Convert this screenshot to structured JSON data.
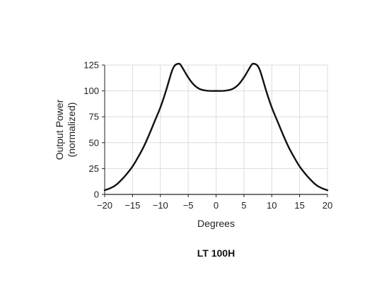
{
  "chart_data": {
    "type": "line",
    "title": "LT 100H",
    "xlabel": "Degrees",
    "ylabel": [
      "Output Power",
      "(normalized)"
    ],
    "xlim": [
      -20,
      20
    ],
    "ylim": [
      0,
      125
    ],
    "xticks": [
      -20,
      -15,
      -10,
      -5,
      0,
      5,
      10,
      15,
      20
    ],
    "xtick_labels": [
      "−20",
      "−15",
      "−10",
      "−5",
      "0",
      "5",
      "10",
      "15",
      "20"
    ],
    "yticks": [
      0,
      25,
      50,
      75,
      100,
      125
    ],
    "ytick_labels": [
      "0",
      "25",
      "50",
      "75",
      "100",
      "125"
    ],
    "grid": true,
    "legend": "none",
    "series": [
      {
        "x": [
          -20,
          -19,
          -18,
          -17,
          -16,
          -15,
          -14,
          -13,
          -12,
          -11,
          -10,
          -9,
          -8,
          -7.5,
          -7,
          -6.5,
          -6,
          -5,
          -4,
          -3,
          -2,
          -1,
          0,
          1,
          2,
          3,
          4,
          5,
          6,
          6.5,
          7,
          7.5,
          8,
          9,
          10,
          11,
          12,
          13,
          14,
          15,
          16,
          17,
          18,
          19,
          20
        ],
        "y": [
          4,
          6,
          9,
          14,
          20,
          27,
          36,
          46,
          58,
          71,
          84,
          100,
          118,
          124,
          126,
          126,
          122,
          113,
          106,
          102,
          100.5,
          100,
          100,
          100,
          100.5,
          102,
          106,
          113,
          122,
          126,
          126,
          124,
          118,
          100,
          84,
          71,
          58,
          46,
          36,
          27,
          20,
          14,
          9,
          6,
          4
        ]
      }
    ],
    "colors": {
      "line": "#111111",
      "grid": "#dcdcdc",
      "axis": "#222222"
    }
  }
}
